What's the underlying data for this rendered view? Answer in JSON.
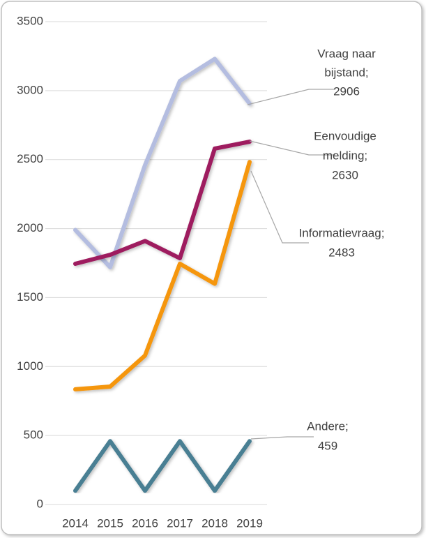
{
  "chart_data": {
    "type": "line",
    "categories": [
      "2014",
      "2015",
      "2016",
      "2017",
      "2018",
      "2019"
    ],
    "ylim": [
      0,
      3500
    ],
    "yticks": [
      0,
      500,
      1000,
      1500,
      2000,
      2500,
      3000,
      3500
    ],
    "grid": true,
    "series": [
      {
        "color": "#b4bde0",
        "values": [
          1990,
          1720,
          2460,
          3070,
          3230,
          2906
        ],
        "end_label_lines": [
          "Vraag naar",
          "bijstand;",
          "2906"
        ]
      },
      {
        "color": "#9e1a5e",
        "values": [
          1745,
          1810,
          1910,
          1785,
          2580,
          2630
        ],
        "end_label_lines": [
          "Eenvoudige",
          "melding;",
          "2630"
        ]
      },
      {
        "color": "#f5960f",
        "values": [
          835,
          855,
          1080,
          1745,
          1600,
          2483
        ],
        "end_label_lines": [
          "Informatievraag;",
          "2483"
        ]
      },
      {
        "color": "#4a7f93",
        "values": [
          100,
          459,
          100,
          459,
          100,
          459
        ],
        "end_label_lines": [
          "Andere;",
          "459"
        ]
      }
    ]
  }
}
